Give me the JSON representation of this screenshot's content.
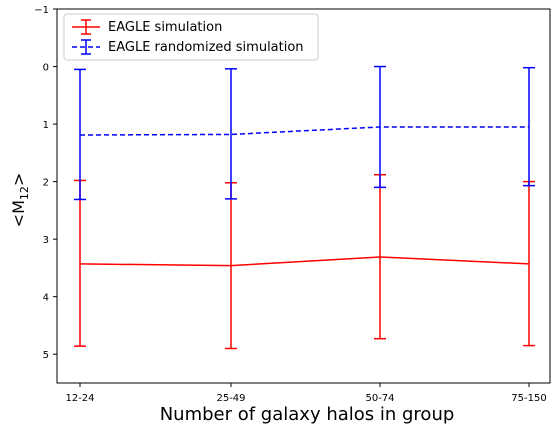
{
  "chart_data": {
    "type": "line",
    "categories": [
      "12-24",
      "25-49",
      "50-74",
      "75-150"
    ],
    "xlabel": "Number of galaxy halos in group",
    "ylabel_main": "<M",
    "ylabel_sub": "12",
    "ylabel_end": ">",
    "ylim": [
      5.5,
      -1.0
    ],
    "yticks": [
      -1,
      0,
      1,
      2,
      3,
      4,
      5
    ],
    "inverted_y": true,
    "grid": false,
    "legend_position": "top-left",
    "series": [
      {
        "name": "EAGLE simulation",
        "color": "#ff0000",
        "linestyle": "solid",
        "values": [
          3.43,
          3.46,
          3.31,
          3.43
        ],
        "err_low": [
          1.98,
          2.02,
          1.88,
          2.0
        ],
        "err_high": [
          4.86,
          4.9,
          4.73,
          4.85
        ]
      },
      {
        "name": "EAGLE randomized simulation",
        "color": "#0000ff",
        "linestyle": "dashed",
        "values": [
          1.19,
          1.18,
          1.05,
          1.05
        ],
        "err_low": [
          0.05,
          0.04,
          0.0,
          0.02
        ],
        "err_high": [
          2.31,
          2.3,
          2.1,
          2.07
        ]
      }
    ]
  }
}
